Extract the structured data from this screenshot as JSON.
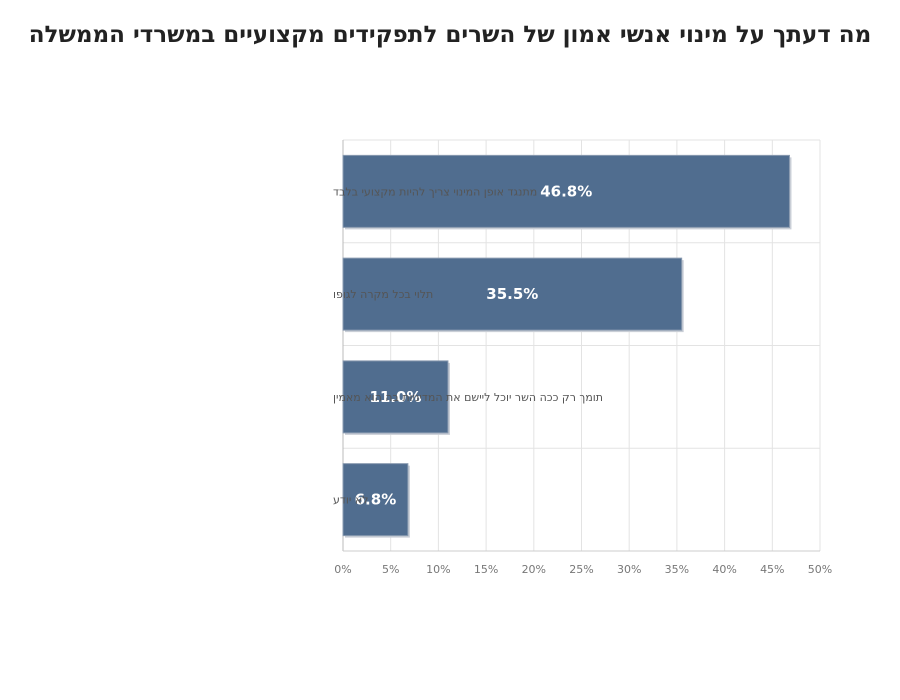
{
  "chart_data": {
    "type": "bar",
    "orientation": "horizontal",
    "title": "מה דעתך על מינוי אנשי אמון של השרים לתפקידים מקצועיים במשרדי הממשלה",
    "categories": [
      "מתנגד אופן המינוי צריך להיות מקצועי בלבד",
      "תלוי בכל מקרה לגופו",
      "תומך רק ככה השר יוכל ליישם את המדיניות בה הוא מאמין",
      "לא יודע"
    ],
    "values": [
      46.8,
      35.5,
      11.0,
      6.8
    ],
    "data_labels": [
      "46.8%",
      "35.5%",
      "11.0%",
      "6.8%"
    ],
    "xlim": [
      0,
      50
    ],
    "x_ticks": [
      0,
      5,
      10,
      15,
      20,
      25,
      30,
      35,
      40,
      45,
      50
    ],
    "x_tick_labels": [
      "0%",
      "5%",
      "10%",
      "15%",
      "20%",
      "25%",
      "30%",
      "35%",
      "40%",
      "45%",
      "50%"
    ],
    "xlabel": "",
    "ylabel": "",
    "grid": true,
    "legend": "none",
    "bar_color": "#506d8f",
    "bar_border_color": "#8a9bb0"
  }
}
